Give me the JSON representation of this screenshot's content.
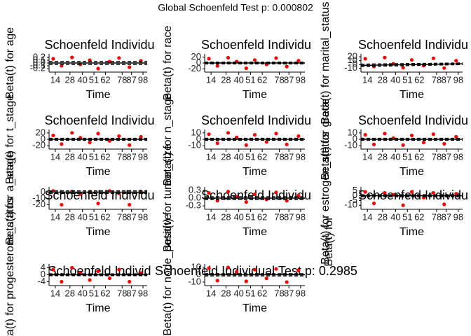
{
  "title": "Global Schoenfeld Test p: 0.000802",
  "extra_label": "Beta(t) for",
  "chart_data": [
    {
      "type": "scatter",
      "title": "Schoenfeld Individu",
      "xlabel": "Time",
      "ylabel": "Beta(t) for age",
      "color": "#ff0000",
      "x": [
        12,
        20,
        30,
        38,
        47,
        55,
        66,
        75,
        85,
        96
      ],
      "values": [
        0.15,
        -0.1,
        0.2,
        -0.05,
        0.1,
        -0.2,
        0.05,
        0.18,
        -0.15,
        0.08
      ],
      "fit": [
        0,
        0
      ],
      "ci_upper": [
        0.05,
        0.05
      ],
      "ci_lower": [
        -0.05,
        -0.05
      ],
      "xlim": [
        8,
        102
      ],
      "xticks": [
        14,
        28,
        40,
        51,
        62,
        78,
        87,
        98
      ],
      "ylim": [
        -0.25,
        0.25
      ],
      "yticks": [
        {
          "value": -0.2,
          "label": "-0.2"
        },
        {
          "value": -0.1,
          "label": "-0.1"
        },
        {
          "value": 0,
          "label": "0.0"
        },
        0.1,
        0.2
      ]
    },
    {
      "type": "scatter",
      "title": "Schoenfeld Individu",
      "xlabel": "Time",
      "ylabel": "Beta(t) for race",
      "color": "#ff0000",
      "x": [
        12,
        20,
        30,
        38,
        47,
        55,
        66,
        75,
        85,
        96
      ],
      "values": [
        15,
        -10,
        18,
        5,
        -18,
        10,
        -5,
        17,
        -12,
        8
      ],
      "fit": [
        0,
        0
      ],
      "ci_upper": [
        3,
        3
      ],
      "ci_lower": [
        -3,
        -3
      ],
      "xlim": [
        8,
        102
      ],
      "xticks": [
        14,
        28,
        40,
        51,
        62,
        78,
        87,
        98
      ],
      "ylim": [
        -24,
        24
      ],
      "yticks": [
        -20,
        0,
        20
      ]
    },
    {
      "type": "scatter",
      "title": "Schoenfeld Individu",
      "xlabel": "Time",
      "ylabel": "Beta(t) for marital_status",
      "color": "#ff0000",
      "x": [
        12,
        20,
        30,
        38,
        47,
        55,
        66,
        75,
        85,
        96
      ],
      "values": [
        15,
        -5,
        18,
        2,
        -8,
        12,
        -3,
        16,
        -9,
        10
      ],
      "fit": [
        -2,
        2
      ],
      "ci_upper": [
        1,
        4
      ],
      "ci_lower": [
        -5,
        0
      ],
      "xlim": [
        8,
        102
      ],
      "xticks": [
        14,
        28,
        40,
        51,
        62,
        78,
        87,
        98
      ],
      "ylim": [
        -14,
        22
      ],
      "yticks": [
        -10,
        0,
        10,
        20
      ]
    },
    {
      "type": "scatter",
      "title": "Schoenfeld Individu",
      "xlabel": "Time",
      "ylabel": "Beta(t) for t_stage",
      "color": "#ff0000",
      "x": [
        12,
        20,
        30,
        38,
        47,
        55,
        66,
        75,
        85,
        96
      ],
      "values": [
        12,
        -15,
        20,
        5,
        -10,
        18,
        -5,
        10,
        -18,
        8
      ],
      "fit": [
        0,
        0
      ],
      "ci_upper": [
        3,
        3
      ],
      "ci_lower": [
        -3,
        -3
      ],
      "xlim": [
        8,
        102
      ],
      "xticks": [
        14,
        28,
        40,
        51,
        62,
        78,
        87,
        98
      ],
      "ylim": [
        -24,
        24
      ],
      "yticks": [
        -20,
        0,
        20
      ]
    },
    {
      "type": "scatter",
      "title": "Schoenfeld Individu",
      "xlabel": "Time",
      "ylabel": "Beta(t) for n_stage",
      "color": "#ff0000",
      "x": [
        12,
        20,
        30,
        38,
        47,
        55,
        66,
        75,
        85,
        96
      ],
      "values": [
        8,
        -6,
        10,
        3,
        -9,
        7,
        -4,
        9,
        -8,
        5
      ],
      "fit": [
        0,
        0
      ],
      "ci_upper": [
        1.5,
        1.5
      ],
      "ci_lower": [
        -1.5,
        -1.5
      ],
      "xlim": [
        8,
        102
      ],
      "xticks": [
        14,
        28,
        40,
        51,
        62,
        78,
        87,
        98
      ],
      "ylim": [
        -12,
        12
      ],
      "yticks": [
        -10,
        0,
        10
      ]
    },
    {
      "type": "scatter",
      "title": "Schoenfeld Individu",
      "xlabel": "Time",
      "ylabel": "Beta(t) for grade",
      "color": "#ff0000",
      "x": [
        12,
        20,
        30,
        38,
        47,
        55,
        66,
        75,
        85,
        96
      ],
      "values": [
        7,
        -8,
        9,
        2,
        -9,
        6,
        -5,
        8,
        -7,
        4
      ],
      "fit": [
        0,
        0
      ],
      "ci_upper": [
        1.5,
        1.5
      ],
      "ci_lower": [
        -1.5,
        -1.5
      ],
      "xlim": [
        8,
        102
      ],
      "xticks": [
        14,
        28,
        40,
        51,
        62,
        78,
        87,
        98
      ],
      "ylim": [
        -12,
        12
      ],
      "yticks": [
        -10,
        0,
        10
      ]
    },
    {
      "type": "scatter",
      "title": "Schoenfeld Individu",
      "xlabel": "Time",
      "ylabel": "Beta(t) for a_stage",
      "color": "#ff0000",
      "x": [
        12,
        20,
        30,
        38,
        47,
        55,
        66,
        75,
        85,
        96
      ],
      "values": [
        2,
        -20,
        1,
        -3,
        0,
        -18,
        2,
        -2,
        -20,
        1
      ],
      "fit": [
        0,
        0
      ],
      "ci_upper": [
        2,
        2
      ],
      "ci_lower": [
        -2,
        -2
      ],
      "xlim": [
        8,
        102
      ],
      "xticks": [
        14,
        28,
        40,
        51,
        62,
        78,
        87,
        98
      ],
      "ylim": [
        -24,
        5
      ],
      "yticks": [
        -20,
        -10,
        0
      ]
    },
    {
      "type": "scatter",
      "title": "Schoenfeld Individu",
      "xlabel": "Time",
      "ylabel": "Beta(t) for tumor_size",
      "color": "#ff0000",
      "x": [
        12,
        20,
        30,
        38,
        47,
        55,
        66,
        75,
        85,
        96
      ],
      "values": [
        0.2,
        -0.1,
        0.25,
        0.05,
        -0.15,
        0.15,
        -0.05,
        0.22,
        -0.1,
        0.1
      ],
      "fit": [
        0,
        0
      ],
      "ci_upper": [
        0.05,
        0.05
      ],
      "ci_lower": [
        -0.05,
        -0.05
      ],
      "xlim": [
        8,
        102
      ],
      "xticks": [
        14,
        28,
        40,
        51,
        62,
        78,
        87,
        98
      ],
      "ylim": [
        -0.35,
        0.35
      ],
      "yticks": [
        {
          "value": -0.3,
          "label": "-0.3"
        },
        {
          "value": 0,
          "label": "0.0"
        },
        0.3
      ]
    },
    {
      "type": "scatter",
      "title": "Schoenfeld Individu",
      "xlabel": "Time",
      "ylabel": "Beta(t) for estrogen_status",
      "color": "#ff0000",
      "x": [
        12,
        20,
        30,
        38,
        47,
        55,
        66,
        75,
        85,
        96
      ],
      "values": [
        4,
        -8,
        3,
        1,
        -10,
        4,
        -2,
        3,
        -9,
        2
      ],
      "fit": [
        0,
        0
      ],
      "ci_upper": [
        1,
        1
      ],
      "ci_lower": [
        -1,
        -1
      ],
      "xlim": [
        8,
        102
      ],
      "xticks": [
        14,
        28,
        40,
        51,
        62,
        78,
        87,
        98
      ],
      "ylim": [
        -12,
        7
      ],
      "yticks": [
        -10,
        -5,
        0,
        5
      ]
    },
    {
      "type": "scatter",
      "title": "Schoenfeld Individ",
      "xlabel": "Time",
      "ylabel": "Beta(t) for progesterone_status",
      "color": "#ff0000",
      "x": [
        12,
        20,
        30,
        38,
        47,
        55,
        66,
        75,
        85,
        96
      ],
      "values": [
        3,
        -4,
        4,
        1,
        -3,
        2,
        -2,
        3,
        -4,
        1
      ],
      "fit": [
        0,
        0
      ],
      "ci_upper": [
        0.5,
        0.5
      ],
      "ci_lower": [
        -0.5,
        -0.5
      ],
      "xlim": [
        8,
        102
      ],
      "xticks": [
        14,
        28,
        40,
        51,
        62,
        78,
        87,
        98
      ],
      "ylim": [
        -5,
        5
      ],
      "yticks": [
        -4,
        0,
        4
      ]
    },
    {
      "type": "scatter",
      "title": "Schoenfeld Individual Test p: 0.2985",
      "xlabel": "Time",
      "ylabel": "Beta(t) for node_positive",
      "color": "#ff0000",
      "x": [
        12,
        20,
        30,
        38,
        47,
        55,
        66,
        75,
        85,
        96
      ],
      "values": [
        9,
        -8,
        10,
        4,
        -9,
        7,
        -5,
        8,
        -10,
        6
      ],
      "fit": [
        0,
        0
      ],
      "ci_upper": [
        1.5,
        1.5
      ],
      "ci_lower": [
        -1.5,
        -1.5
      ],
      "xlim": [
        8,
        102
      ],
      "xticks": [
        14,
        28,
        40,
        51,
        62,
        78,
        87,
        98
      ],
      "ylim": [
        -12,
        12
      ],
      "yticks": [
        -10,
        0,
        10
      ]
    }
  ]
}
